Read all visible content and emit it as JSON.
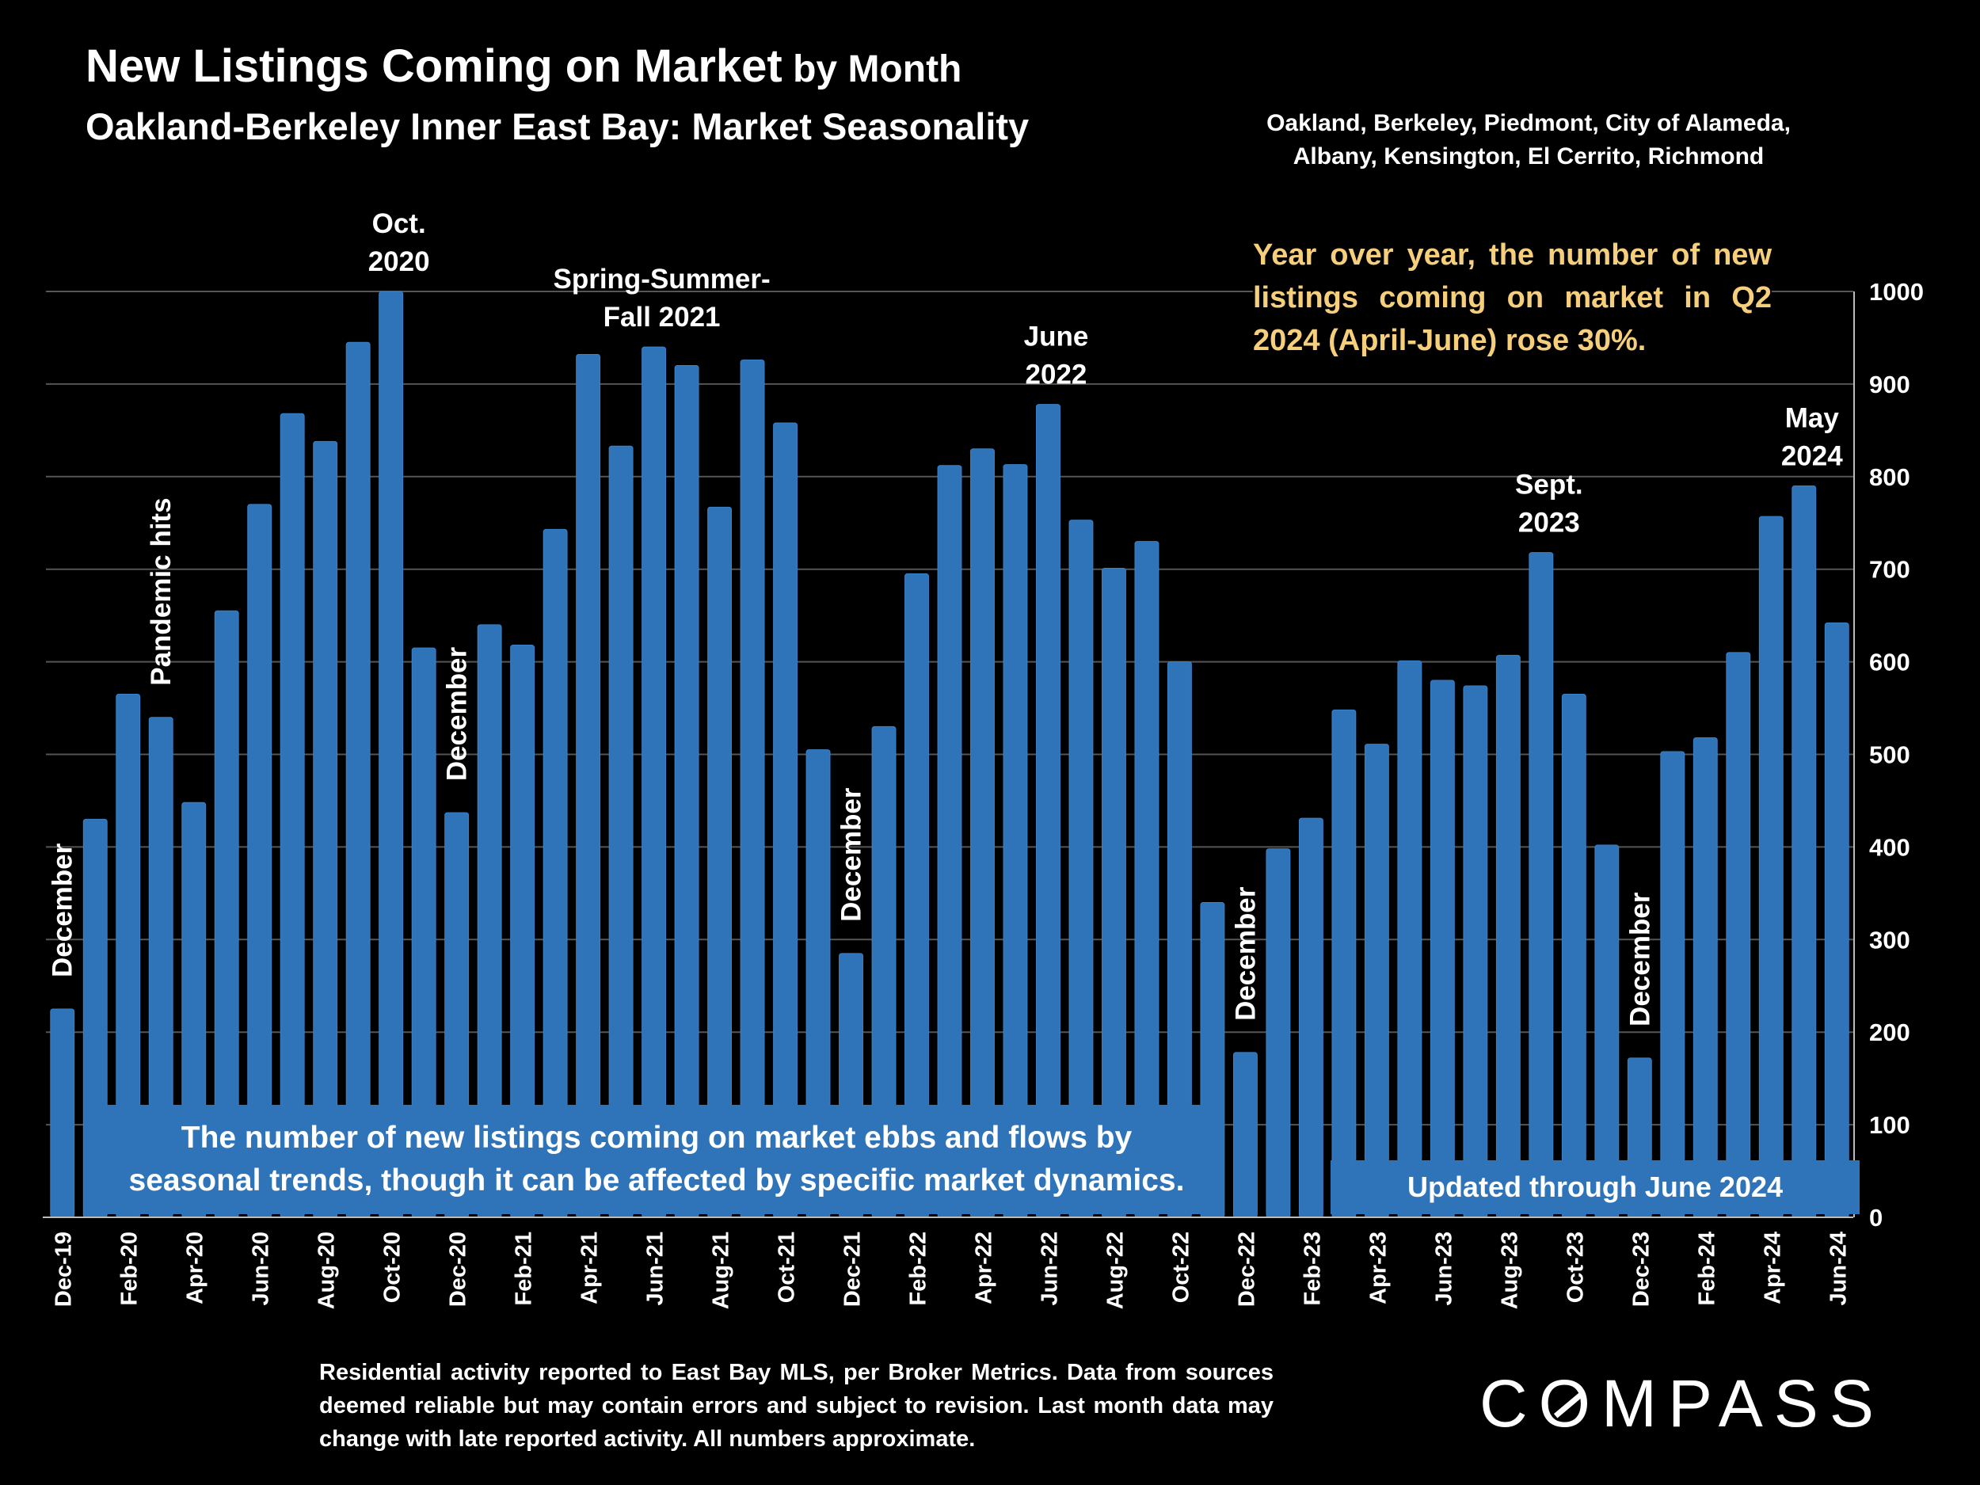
{
  "title": {
    "main": "New Listings Coming on Market",
    "suffix": " by Month"
  },
  "subtitle": "Oakland-Berkeley Inner East Bay: Market Seasonality",
  "areas": {
    "line1": "Oakland, Berkeley, Piedmont, City of Alameda,",
    "line2": "Albany, Kensington, El Cerrito, Richmond"
  },
  "yoy_note": "Year over year, the number of new listings coming on market in Q2 2024 (April-June) rose 30%.",
  "ebb_note": {
    "line1": "The number of new listings coming on market ebbs and flows by",
    "line2": "seasonal trends, though it can be affected by specific market dynamics."
  },
  "updated_note": "Updated through June 2024",
  "footnote": "Residential activity reported to East Bay MLS, per Broker Metrics. Data from sources deemed reliable but may contain errors and subject to revision. Last month data may change with late reported activity. All numbers approximate.",
  "logo": {
    "before": "C",
    "ring": "O",
    "after": "MPASS"
  },
  "colors": {
    "bar": "#2f73b8",
    "bar_highlight": "#3a82c8",
    "grid": "#555555",
    "note": "#f6cf7d",
    "background": "#000000"
  },
  "chart_data": {
    "type": "bar",
    "categories": [
      "Dec-19",
      "Jan-20",
      "Feb-20",
      "Mar-20",
      "Apr-20",
      "May-20",
      "Jun-20",
      "Jul-20",
      "Aug-20",
      "Sep-20",
      "Oct-20",
      "Nov-20",
      "Dec-20",
      "Jan-21",
      "Feb-21",
      "Mar-21",
      "Apr-21",
      "May-21",
      "Jun-21",
      "Jul-21",
      "Aug-21",
      "Sep-21",
      "Oct-21",
      "Nov-21",
      "Dec-21",
      "Jan-22",
      "Feb-22",
      "Mar-22",
      "Apr-22",
      "May-22",
      "Jun-22",
      "Jul-22",
      "Aug-22",
      "Sep-22",
      "Oct-22",
      "Nov-22",
      "Dec-22",
      "Jan-23",
      "Feb-23",
      "Mar-23",
      "Apr-23",
      "May-23",
      "Jun-23",
      "Jul-23",
      "Aug-23",
      "Sep-23",
      "Oct-23",
      "Nov-23",
      "Dec-23",
      "Jan-24",
      "Feb-24",
      "Mar-24",
      "Apr-24",
      "May-24",
      "Jun-24"
    ],
    "values": [
      225,
      430,
      565,
      540,
      448,
      655,
      770,
      868,
      838,
      945,
      1000,
      615,
      437,
      640,
      618,
      743,
      932,
      833,
      940,
      920,
      767,
      926,
      858,
      505,
      285,
      530,
      695,
      812,
      830,
      813,
      878,
      753,
      701,
      730,
      600,
      340,
      178,
      398,
      431,
      548,
      511,
      601,
      580,
      574,
      607,
      718,
      565,
      402,
      172,
      503,
      518,
      610,
      757,
      790,
      642
    ],
    "tick_labels": [
      "Dec-19",
      "Feb-20",
      "Apr-20",
      "Jun-20",
      "Aug-20",
      "Oct-20",
      "Dec-20",
      "Feb-21",
      "Apr-21",
      "Jun-21",
      "Aug-21",
      "Oct-21",
      "Dec-21",
      "Feb-22",
      "Apr-22",
      "Jun-22",
      "Aug-22",
      "Oct-22",
      "Dec-22",
      "Feb-23",
      "Apr-23",
      "Jun-23",
      "Aug-23",
      "Oct-23",
      "Dec-23",
      "Feb-24",
      "Apr-24",
      "Jun-24"
    ],
    "ylim": [
      0,
      1000
    ],
    "yticks": [
      0,
      100,
      200,
      300,
      400,
      500,
      600,
      700,
      800,
      900,
      1000
    ],
    "y_axis_side": "right",
    "grid": true,
    "legend": "none",
    "annotations": [
      {
        "category": "Dec-19",
        "lines": [
          "December"
        ],
        "orientation": "vertical"
      },
      {
        "category": "Mar-20",
        "lines": [
          "Pandemic hits"
        ],
        "orientation": "vertical"
      },
      {
        "category": "Oct-20",
        "lines": [
          "Oct.",
          "2020"
        ],
        "orientation": "horizontal"
      },
      {
        "category": "Dec-20",
        "lines": [
          "December"
        ],
        "orientation": "vertical"
      },
      {
        "category": "Jun-21",
        "lines": [
          "Spring-Summer-",
          "Fall  2021"
        ],
        "orientation": "horizontal"
      },
      {
        "category": "Dec-21",
        "lines": [
          "December"
        ],
        "orientation": "vertical"
      },
      {
        "category": "Jun-22",
        "lines": [
          "June",
          "2022"
        ],
        "orientation": "horizontal"
      },
      {
        "category": "Dec-22",
        "lines": [
          "December"
        ],
        "orientation": "vertical"
      },
      {
        "category": "Sep-23",
        "lines": [
          "Sept.",
          "2023"
        ],
        "orientation": "horizontal"
      },
      {
        "category": "Dec-23",
        "lines": [
          "December"
        ],
        "orientation": "vertical"
      },
      {
        "category": "May-24",
        "lines": [
          "May",
          "2024"
        ],
        "orientation": "horizontal"
      }
    ]
  }
}
